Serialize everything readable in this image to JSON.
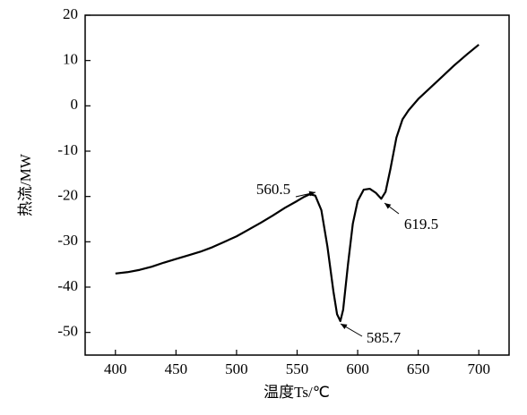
{
  "chart_data": {
    "type": "line",
    "x_label": "温度Ts/℃",
    "y_label": "热流/MW",
    "x": [
      400,
      410,
      420,
      430,
      440,
      450,
      460,
      470,
      480,
      490,
      500,
      510,
      520,
      530,
      540,
      550,
      555,
      560.5,
      565,
      570,
      575,
      580,
      583,
      585.7,
      588,
      592,
      596,
      600,
      605,
      610,
      615,
      619.5,
      623,
      627,
      632,
      637,
      642,
      650,
      660,
      670,
      680,
      690,
      700
    ],
    "series": [
      {
        "color": "#000000",
        "values": [
          -37,
          -36.7,
          -36.2,
          -35.5,
          -34.6,
          -33.8,
          -33,
          -32.2,
          -31.2,
          -30,
          -28.8,
          -27.3,
          -25.8,
          -24.2,
          -22.5,
          -21,
          -20.2,
          -19.5,
          -19.8,
          -23,
          -31,
          -41,
          -46,
          -47.5,
          -45,
          -35,
          -26,
          -21,
          -18.5,
          -18.3,
          -19.2,
          -20.5,
          -19,
          -14,
          -7,
          -3,
          -1,
          1.5,
          4,
          6.5,
          9,
          11.3,
          13.5
        ]
      }
    ],
    "annotations": [
      "560.5",
      "585.7",
      "619.5"
    ],
    "xlim": [
      375,
      725
    ],
    "xticks": [
      400,
      450,
      500,
      550,
      600,
      650,
      700
    ],
    "ylim": [
      -55,
      20
    ],
    "yticks": [
      -50,
      -40,
      -30,
      -20,
      -10,
      0,
      10,
      20
    ]
  }
}
